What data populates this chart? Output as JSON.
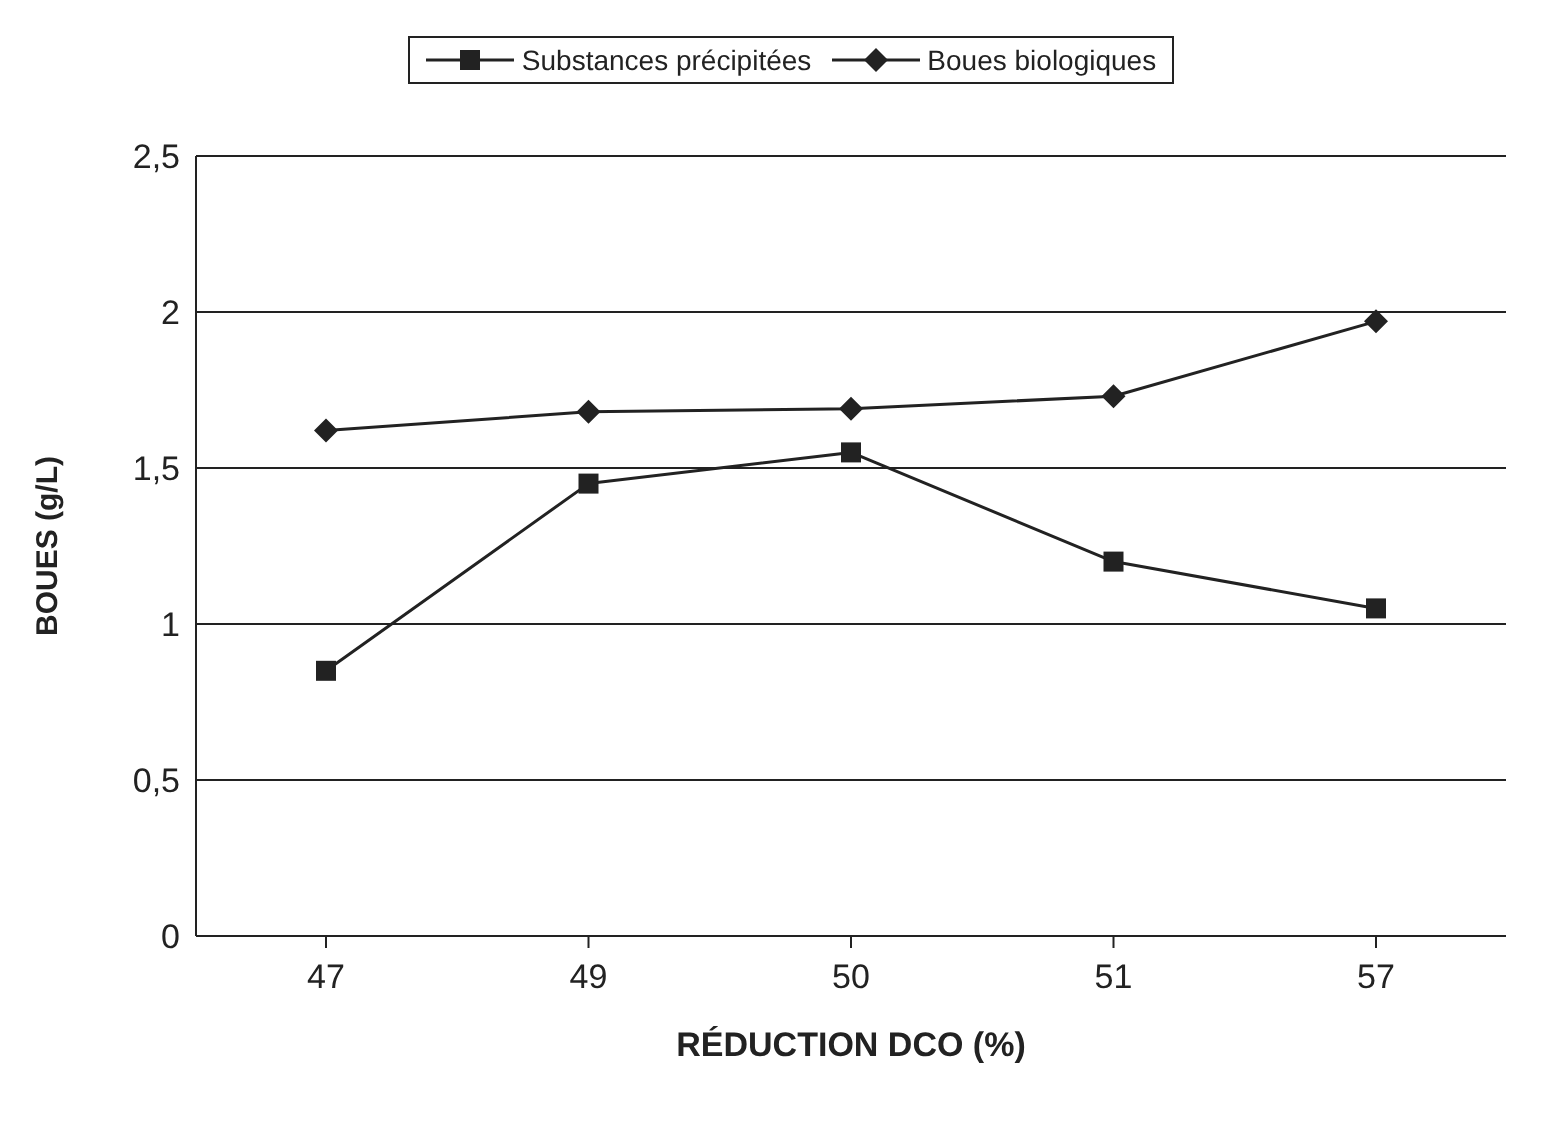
{
  "chart_data": {
    "type": "line",
    "xlabel": "RÉDUCTION DCO (%)",
    "ylabel": "BOUES (g/L)",
    "categories": [
      "47",
      "49",
      "50",
      "51",
      "57"
    ],
    "series": [
      {
        "name": "Substances précipitées",
        "color": "#222222",
        "marker": "square",
        "values": [
          0.85,
          1.45,
          1.55,
          1.2,
          1.05
        ]
      },
      {
        "name": "Boues biologiques",
        "color": "#222222",
        "marker": "diamond",
        "values": [
          1.62,
          1.68,
          1.69,
          1.73,
          1.97
        ]
      }
    ],
    "ylim": [
      0,
      2.5
    ],
    "yticks": [
      0,
      {
        "value": 0.5,
        "label": "0,5"
      },
      1,
      {
        "value": 1.5,
        "label": "1,5"
      },
      2,
      {
        "value": 2.5,
        "label": "2,5"
      }
    ],
    "grid": "y",
    "legend": "top"
  }
}
